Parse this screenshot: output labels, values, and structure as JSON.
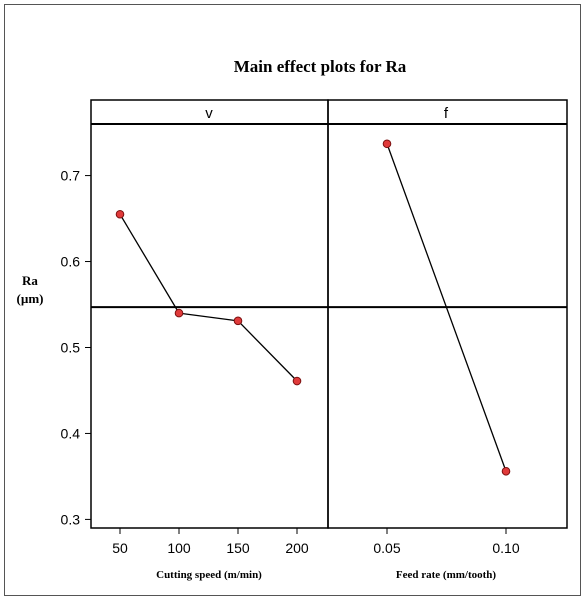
{
  "chart_data": {
    "type": "line",
    "title": "Main effect plots for Ra",
    "ylabel": [
      "Ra",
      "(µm)"
    ],
    "ylim": [
      0.29,
      0.76
    ],
    "yticks": [
      "0.3",
      "0.4",
      "0.5",
      "0.6",
      "0.7"
    ],
    "mean_line": 0.547,
    "marker_color": "#e03a3a",
    "panels": [
      {
        "header": "v",
        "xlabel": "Cutting speed (m/min)",
        "categories": [
          "50",
          "100",
          "150",
          "200"
        ],
        "values": [
          0.655,
          0.54,
          0.531,
          0.461
        ]
      },
      {
        "header": "f",
        "xlabel": "Feed rate (mm/tooth)",
        "categories": [
          "0.05",
          "0.10"
        ],
        "values": [
          0.737,
          0.356
        ]
      }
    ]
  }
}
